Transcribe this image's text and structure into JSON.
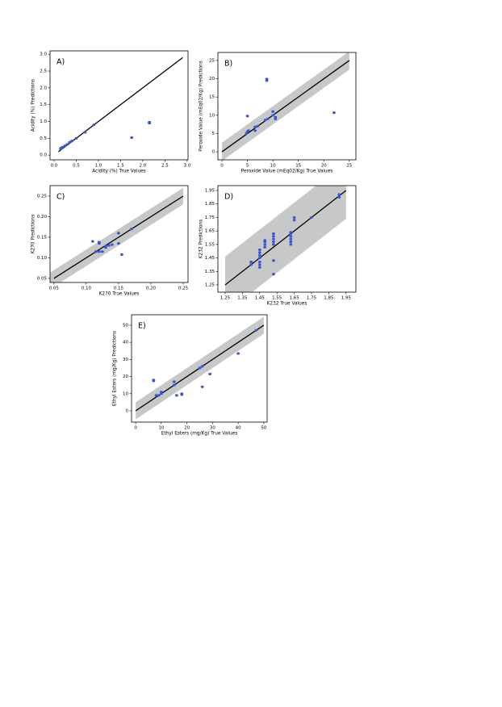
{
  "chart_data": [
    {
      "type": "scatter",
      "annotation": "A)",
      "xlabel": "Acidity (%) True Values",
      "ylabel": "Acidity (%) Predictions",
      "color": "#3b55d6",
      "x": [
        0.15,
        0.15,
        0.17,
        0.18,
        0.2,
        0.25,
        0.3,
        0.35,
        0.4,
        0.5,
        0.7,
        0.9,
        1.75,
        2.15,
        2.15
      ],
      "y": [
        0.18,
        0.2,
        0.22,
        0.21,
        0.24,
        0.28,
        0.32,
        0.38,
        0.42,
        0.5,
        0.68,
        0.9,
        0.52,
        0.95,
        0.98
      ],
      "line": {
        "x": [
          0.1,
          2.9
        ],
        "y": [
          0.1,
          2.9
        ]
      },
      "xlim": [
        -0.09,
        3.02
      ],
      "ylim": [
        -0.14,
        3.1
      ],
      "xticks": [
        {
          "value": 0,
          "label": "0.0"
        },
        0.5,
        {
          "value": 1,
          "label": "1.0"
        },
        1.5,
        {
          "value": 2,
          "label": "2.0"
        },
        2.5,
        {
          "value": 3,
          "label": "3.0"
        }
      ],
      "yticks": [
        {
          "value": 0,
          "label": "0.0"
        },
        0.5,
        {
          "value": 1,
          "label": "1.0"
        },
        1.5,
        {
          "value": 2,
          "label": "2.0"
        },
        2.5,
        {
          "value": 3,
          "label": "3.0"
        }
      ]
    },
    {
      "type": "scatter",
      "annotation": "B)",
      "xlabel": "Peroxide Value (mEq02/Kg) True Values",
      "ylabel": "Peroxide Value (mEq02/Kg) Predictions",
      "color": "#3b55d6",
      "band_color": "#c6c9c7",
      "x": [
        5,
        5,
        5.2,
        4.8,
        6.5,
        6.5,
        7,
        8.5,
        9,
        8.8,
        8.8,
        10,
        10,
        10.5,
        10.5,
        22
      ],
      "y": [
        9.8,
        5.5,
        5.8,
        5,
        5.8,
        6.8,
        7,
        8.7,
        9,
        19.5,
        19.9,
        11,
        10,
        9.5,
        9,
        10.7
      ],
      "line": {
        "x": [
          0,
          25
        ],
        "y": [
          0,
          25
        ]
      },
      "band": {
        "x": [
          0,
          25
        ],
        "lower": [
          -2.5,
          22.5
        ],
        "upper": [
          2.5,
          27.5
        ]
      },
      "xlim": [
        -0.8,
        26.3
      ],
      "ylim": [
        -2.2,
        27.2
      ],
      "xticks": [
        0,
        5,
        10,
        15,
        20,
        25
      ],
      "yticks": [
        0,
        5,
        10,
        15,
        20,
        25
      ]
    },
    {
      "type": "scatter",
      "annotation": "C)",
      "xlabel": "K270 True Values",
      "ylabel": "K270 Predictions",
      "color": "#3b55d6",
      "band_color": "#c6c9c7",
      "x": [
        0.11,
        0.115,
        0.12,
        0.12,
        0.12,
        0.125,
        0.13,
        0.13,
        0.135,
        0.14,
        0.15,
        0.15,
        0.155,
        0.17
      ],
      "y": [
        0.14,
        0.115,
        0.135,
        0.138,
        0.115,
        0.115,
        0.125,
        0.128,
        0.13,
        0.132,
        0.16,
        0.135,
        0.108,
        0.17
      ],
      "line": {
        "x": [
          0.05,
          0.25
        ],
        "y": [
          0.05,
          0.25
        ]
      },
      "band": {
        "x": [
          0.04,
          0.25
        ],
        "lower": [
          0.02,
          0.23
        ],
        "upper": [
          0.06,
          0.27
        ]
      },
      "xlim": [
        0.044,
        0.2575
      ],
      "ylim": [
        0.04,
        0.2755
      ],
      "xticks": [
        0.05,
        {
          "value": 0.1,
          "label": "0.10"
        },
        0.15,
        {
          "value": 0.2,
          "label": "0.20"
        },
        0.25
      ],
      "yticks": [
        0.05,
        {
          "value": 0.1,
          "label": "0.10"
        },
        0.15,
        {
          "value": 0.2,
          "label": "0.20"
        },
        0.25
      ]
    },
    {
      "type": "scatter",
      "annotation": "D)",
      "xlabel": "K232 True Values",
      "ylabel": "K232 Predictions",
      "color": "#3b55d6",
      "band_color": "#c6c9c7",
      "x": [
        1.4,
        1.4,
        1.45,
        1.45,
        1.45,
        1.45,
        1.45,
        1.45,
        1.45,
        1.48,
        1.48,
        1.48,
        1.48,
        1.53,
        1.53,
        1.53,
        1.53,
        1.53,
        1.53,
        1.53,
        1.63,
        1.63,
        1.63,
        1.63,
        1.63,
        1.63,
        1.65,
        1.65,
        1.75,
        1.91,
        1.91
      ],
      "y": [
        1.4,
        1.42,
        1.38,
        1.4,
        1.42,
        1.45,
        1.47,
        1.49,
        1.51,
        1.53,
        1.55,
        1.57,
        1.58,
        1.33,
        1.43,
        1.55,
        1.57,
        1.59,
        1.61,
        1.63,
        1.55,
        1.57,
        1.59,
        1.61,
        1.63,
        1.64,
        1.73,
        1.75,
        1.75,
        1.9,
        1.92
      ],
      "line": {
        "x": [
          1.25,
          1.95
        ],
        "y": [
          1.25,
          1.95
        ]
      },
      "band": {
        "x": [
          1.25,
          1.95
        ],
        "lower": [
          1.04,
          1.74
        ],
        "upper": [
          1.46,
          2.16
        ]
      },
      "xlim": [
        1.208,
        2.007
      ],
      "ylim": [
        1.196,
        1.986
      ],
      "xticks": [
        1.25,
        1.35,
        1.45,
        1.55,
        1.65,
        1.75,
        1.85,
        1.95
      ],
      "yticks": [
        1.25,
        1.35,
        1.45,
        1.55,
        1.65,
        1.75,
        1.85,
        1.95
      ]
    },
    {
      "type": "scatter",
      "annotation": "E)",
      "xlabel": "Ethyl Esters (mg/Kg) True Values",
      "ylabel": "Ethyl Esters (mg/Kg) Predictions",
      "color": "#3b55d6",
      "band_color": "#c6c9c7",
      "x": [
        7,
        7,
        8,
        9,
        10,
        10,
        15,
        15,
        16,
        18,
        18,
        25,
        26,
        26,
        29,
        40,
        47
      ],
      "y": [
        18,
        17.5,
        9,
        9,
        10,
        11,
        17,
        15,
        9,
        10,
        9.5,
        25,
        26,
        14,
        21.5,
        33.5,
        47
      ],
      "line": {
        "x": [
          0,
          50
        ],
        "y": [
          0,
          50
        ]
      },
      "band": {
        "x": [
          0,
          50
        ],
        "lower": [
          -5,
          45
        ],
        "upper": [
          5,
          55
        ]
      },
      "xlim": [
        -1.6,
        51.3
      ],
      "ylim": [
        -6.6,
        56.1
      ],
      "xticks": [
        0,
        10,
        20,
        30,
        40,
        50
      ],
      "yticks": [
        0,
        10,
        20,
        30,
        40,
        50
      ]
    }
  ]
}
